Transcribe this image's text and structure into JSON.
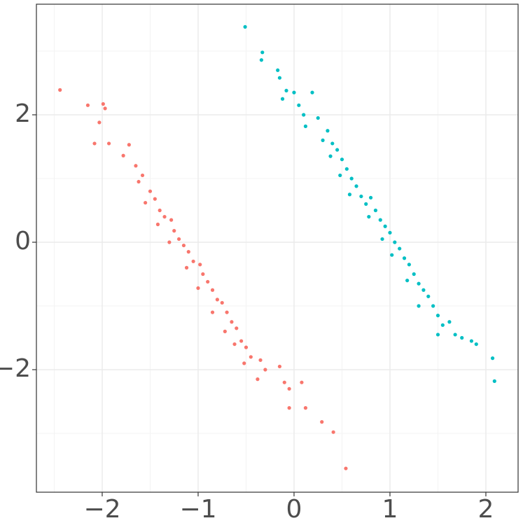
{
  "chart_data": {
    "type": "scatter",
    "xlim": [
      -2.686,
      2.336
    ],
    "ylim": [
      -3.923,
      3.736
    ],
    "xticks": [
      {
        "value": -2,
        "label": "−2"
      },
      {
        "value": -1,
        "label": "−1"
      },
      0,
      1,
      2
    ],
    "yticks": [
      {
        "value": -2,
        "label": "−2"
      },
      0,
      2
    ],
    "x_minor_ticks": [
      -2.5,
      -1.5,
      -0.5,
      0.5,
      1.5
    ],
    "y_minor_ticks": [
      -3,
      -1,
      1,
      3
    ],
    "grid": true,
    "series": [
      {
        "color": "#F8766D",
        "x": [
          -2.44,
          -2.15,
          -1.99,
          -1.97,
          -2.03,
          -2.08,
          -1.93,
          -1.78,
          -1.72,
          -1.65,
          -1.58,
          -1.62,
          -1.5,
          -1.55,
          -1.45,
          -1.4,
          -1.35,
          -1.42,
          -1.28,
          -1.25,
          -1.2,
          -1.3,
          -1.15,
          -1.1,
          -1.05,
          -1.12,
          -0.98,
          -0.95,
          -0.9,
          -1.0,
          -0.85,
          -0.8,
          -0.75,
          -0.85,
          -0.7,
          -0.65,
          -0.72,
          -0.6,
          -0.55,
          -0.62,
          -0.5,
          -0.45,
          -0.52,
          -0.35,
          -0.3,
          -0.38,
          -0.15,
          -0.1,
          -0.05,
          0.08,
          -0.05,
          0.12,
          0.29,
          0.41,
          0.54
        ],
        "values": [
          2.39,
          2.15,
          2.17,
          2.1,
          1.88,
          1.55,
          1.55,
          1.36,
          1.53,
          1.2,
          1.05,
          0.95,
          0.8,
          0.62,
          0.68,
          0.5,
          0.4,
          0.28,
          0.35,
          0.18,
          0.05,
          0.0,
          -0.05,
          -0.15,
          -0.3,
          -0.4,
          -0.35,
          -0.5,
          -0.62,
          -0.72,
          -0.75,
          -0.9,
          -0.95,
          -1.1,
          -1.1,
          -1.25,
          -1.4,
          -1.35,
          -1.55,
          -1.6,
          -1.65,
          -1.8,
          -1.9,
          -1.85,
          -2.0,
          -2.15,
          -1.95,
          -2.2,
          -2.3,
          -2.2,
          -2.6,
          -2.6,
          -2.82,
          -2.98,
          -3.55
        ]
      },
      {
        "color": "#00BFC4",
        "x": [
          -0.51,
          -0.33,
          -0.34,
          -0.17,
          -0.15,
          -0.08,
          -0.12,
          0.0,
          0.05,
          0.1,
          0.19,
          0.12,
          0.25,
          0.35,
          0.3,
          0.4,
          0.45,
          0.38,
          0.5,
          0.55,
          0.48,
          0.6,
          0.65,
          0.58,
          0.7,
          0.75,
          0.8,
          0.85,
          0.78,
          0.9,
          0.95,
          1.0,
          0.92,
          1.05,
          1.1,
          1.02,
          1.15,
          1.2,
          1.25,
          1.18,
          1.3,
          1.35,
          1.4,
          1.3,
          1.45,
          1.5,
          1.55,
          1.5,
          1.62,
          1.68,
          1.75,
          1.85,
          1.9,
          2.07,
          2.09
        ],
        "values": [
          3.38,
          2.98,
          2.86,
          2.7,
          2.58,
          2.38,
          2.25,
          2.35,
          2.15,
          2.0,
          2.35,
          1.82,
          1.95,
          1.75,
          1.6,
          1.55,
          1.45,
          1.35,
          1.3,
          1.15,
          1.05,
          1.0,
          0.88,
          0.75,
          0.72,
          0.6,
          0.7,
          0.5,
          0.4,
          0.35,
          0.25,
          0.15,
          0.05,
          0.0,
          -0.1,
          -0.2,
          -0.25,
          -0.35,
          -0.5,
          -0.6,
          -0.65,
          -0.75,
          -0.85,
          -1.0,
          -1.0,
          -1.15,
          -1.3,
          -1.45,
          -1.25,
          -1.45,
          -1.5,
          -1.55,
          -1.6,
          -1.82,
          -2.18
        ]
      }
    ]
  }
}
